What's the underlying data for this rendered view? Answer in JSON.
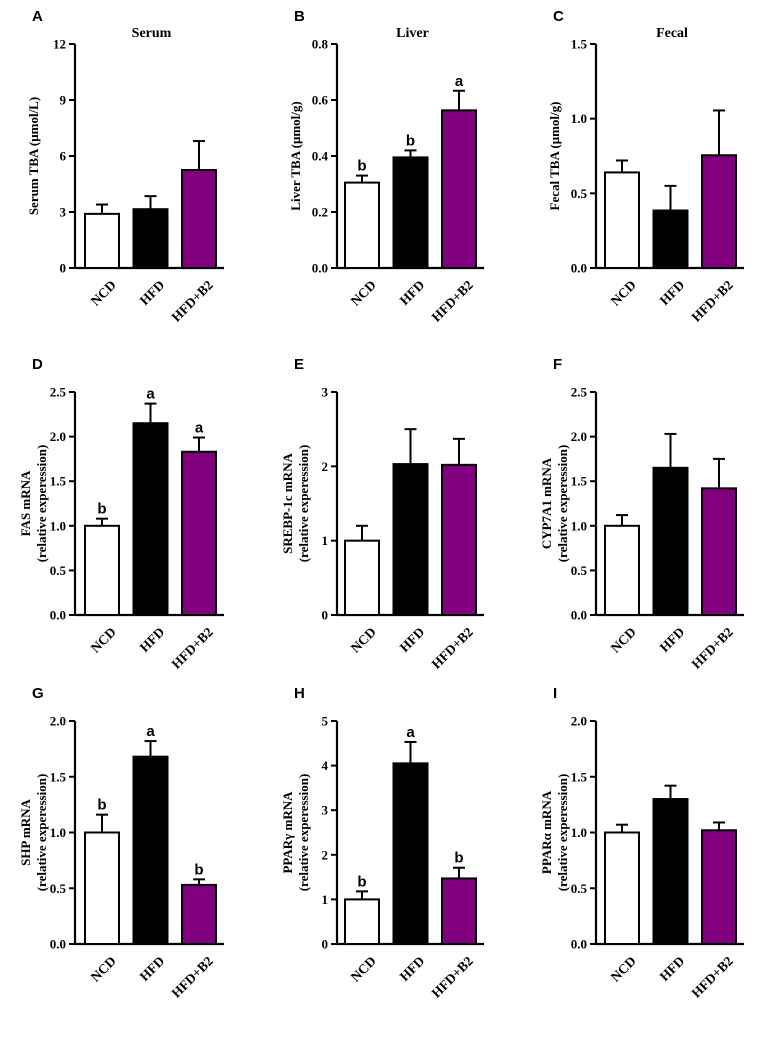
{
  "colors": {
    "NCD": "#ffffff",
    "HFD": "#000000",
    "HFD+B2": "#800080",
    "stroke": "#000000"
  },
  "chart_data": [
    {
      "id": "A",
      "type": "bar",
      "title": "Serum",
      "ylabel": [
        "Serum TBA (μmol/L)"
      ],
      "categories": [
        "NCD",
        "HFD",
        "HFD+B2"
      ],
      "values": [
        2.9,
        3.15,
        5.25
      ],
      "errors": [
        0.5,
        0.7,
        1.55
      ],
      "sig": [
        "",
        "",
        ""
      ],
      "ylim": [
        0,
        12
      ],
      "yticks": [
        "0",
        "3",
        "6",
        "9",
        "12"
      ]
    },
    {
      "id": "B",
      "type": "bar",
      "title": "Liver",
      "ylabel": [
        "Liver TBA  (μmol/g)"
      ],
      "categories": [
        "NCD",
        "HFD",
        "HFD+B2"
      ],
      "values": [
        0.305,
        0.395,
        0.563
      ],
      "errors": [
        0.025,
        0.025,
        0.07
      ],
      "sig": [
        "b",
        "b",
        "a"
      ],
      "ylim": [
        0,
        0.8
      ],
      "yticks": [
        "0.0",
        "0.2",
        "0.4",
        "0.6",
        "0.8"
      ]
    },
    {
      "id": "C",
      "type": "bar",
      "title": "Fecal",
      "ylabel": [
        "Fecal TBA (μmol/g)"
      ],
      "categories": [
        "NCD",
        "HFD",
        "HFD+B2"
      ],
      "values": [
        0.64,
        0.385,
        0.755
      ],
      "errors": [
        0.08,
        0.165,
        0.3
      ],
      "sig": [
        "",
        "",
        ""
      ],
      "ylim": [
        0,
        1.5
      ],
      "yticks": [
        "0.0",
        "0.5",
        "1.0",
        "1.5"
      ]
    },
    {
      "id": "D",
      "type": "bar",
      "title": "",
      "ylabel": [
        "FAS mRNA",
        "(relative experession)"
      ],
      "categories": [
        "NCD",
        "HFD",
        "HFD+B2"
      ],
      "values": [
        1.0,
        2.15,
        1.83
      ],
      "errors": [
        0.08,
        0.22,
        0.16
      ],
      "sig": [
        "b",
        "a",
        "a"
      ],
      "ylim": [
        0,
        2.5
      ],
      "yticks": [
        "0.0",
        "0.5",
        "1.0",
        "1.5",
        "2.0",
        "2.5"
      ]
    },
    {
      "id": "E",
      "type": "bar",
      "title": "",
      "ylabel": [
        "SREBP-1c mRNA",
        "(relative experession)"
      ],
      "categories": [
        "NCD",
        "HFD",
        "HFD+B2"
      ],
      "values": [
        1.0,
        2.03,
        2.02
      ],
      "errors": [
        0.2,
        0.47,
        0.35
      ],
      "sig": [
        "",
        "",
        ""
      ],
      "ylim": [
        0,
        3
      ],
      "yticks": [
        "0",
        "1",
        "2",
        "3"
      ]
    },
    {
      "id": "F",
      "type": "bar",
      "title": "",
      "ylabel": [
        "CYP7A1 mRNA",
        "(relative experession)"
      ],
      "categories": [
        "NCD",
        "HFD",
        "HFD+B2"
      ],
      "values": [
        1.0,
        1.65,
        1.42
      ],
      "errors": [
        0.12,
        0.38,
        0.33
      ],
      "sig": [
        "",
        "",
        ""
      ],
      "ylim": [
        0,
        2.5
      ],
      "yticks": [
        "0.0",
        "0.5",
        "1.0",
        "1.5",
        "2.0",
        "2.5"
      ]
    },
    {
      "id": "G",
      "type": "bar",
      "title": "",
      "ylabel": [
        "SHP mRNA",
        "(relative experession)"
      ],
      "categories": [
        "NCD",
        "HFD",
        "HFD+B2"
      ],
      "values": [
        1.0,
        1.68,
        0.53
      ],
      "errors": [
        0.16,
        0.14,
        0.05
      ],
      "sig": [
        "b",
        "a",
        "b"
      ],
      "ylim": [
        0,
        2.0
      ],
      "yticks": [
        "0.0",
        "0.5",
        "1.0",
        "1.5",
        "2.0"
      ]
    },
    {
      "id": "H",
      "type": "bar",
      "title": "",
      "ylabel": [
        "PPARγ mRNA",
        "(relative experession)"
      ],
      "categories": [
        "NCD",
        "HFD",
        "HFD+B2"
      ],
      "values": [
        1.0,
        4.05,
        1.47
      ],
      "errors": [
        0.18,
        0.48,
        0.24
      ],
      "sig": [
        "b",
        "a",
        "b"
      ],
      "ylim": [
        0,
        5
      ],
      "yticks": [
        "0",
        "1",
        "2",
        "3",
        "4",
        "5"
      ]
    },
    {
      "id": "I",
      "type": "bar",
      "title": "",
      "ylabel": [
        "PPARα mRNA",
        "(relative experession)"
      ],
      "categories": [
        "NCD",
        "HFD",
        "HFD+B2"
      ],
      "values": [
        1.0,
        1.3,
        1.02
      ],
      "errors": [
        0.07,
        0.12,
        0.07
      ],
      "sig": [
        "",
        "",
        ""
      ],
      "ylim": [
        0,
        2.0
      ],
      "yticks": [
        "0.0",
        "0.5",
        "1.0",
        "1.5",
        "2.0"
      ]
    }
  ]
}
